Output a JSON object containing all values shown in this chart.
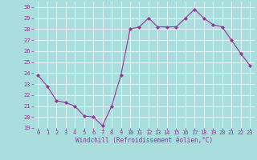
{
  "x": [
    0,
    1,
    2,
    3,
    4,
    5,
    6,
    7,
    8,
    9,
    10,
    11,
    12,
    13,
    14,
    15,
    16,
    17,
    18,
    19,
    20,
    21,
    22,
    23
  ],
  "y": [
    23.8,
    22.8,
    21.5,
    21.3,
    21.0,
    20.1,
    20.0,
    19.2,
    21.0,
    23.8,
    28.0,
    28.2,
    29.0,
    28.2,
    28.2,
    28.2,
    29.0,
    29.8,
    29.0,
    28.4,
    28.2,
    27.0,
    25.8,
    24.7
  ],
  "line_color": "#993399",
  "marker": "D",
  "marker_size": 2,
  "bg_color": "#aadddd",
  "grid_color": "#ffffff",
  "xlabel": "Windchill (Refroidissement éolien,°C)",
  "xlabel_color": "#993399",
  "tick_color": "#993399",
  "xlim": [
    -0.5,
    23.5
  ],
  "ylim": [
    19,
    30.5
  ],
  "yticks": [
    19,
    20,
    21,
    22,
    23,
    24,
    25,
    26,
    27,
    28,
    29,
    30
  ],
  "xticks": [
    0,
    1,
    2,
    3,
    4,
    5,
    6,
    7,
    8,
    9,
    10,
    11,
    12,
    13,
    14,
    15,
    16,
    17,
    18,
    19,
    20,
    21,
    22,
    23
  ],
  "font_name": "monospace",
  "tick_fontsize": 5.0,
  "xlabel_fontsize": 5.5
}
